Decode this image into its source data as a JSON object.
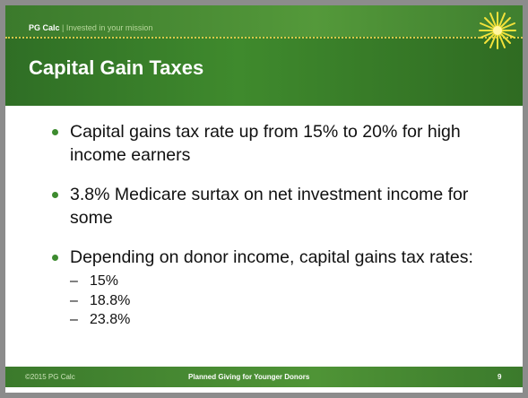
{
  "header": {
    "brand": "PG Calc",
    "separator": "|",
    "tagline": "Invested in your mission"
  },
  "title": "Capital Gain Taxes",
  "bullets": [
    {
      "text": "Capital gains tax rate up from 15% to 20% for high income earners",
      "sub": []
    },
    {
      "text": "3.8% Medicare surtax on net investment income for some",
      "sub": []
    },
    {
      "text": "Depending on donor income, capital gains tax rates:",
      "sub": [
        "15%",
        "18.8%",
        "23.8%"
      ]
    }
  ],
  "footer": {
    "copyright": "©2015 PG Calc",
    "center": "Planned Giving for Younger Donors",
    "page": "9"
  }
}
